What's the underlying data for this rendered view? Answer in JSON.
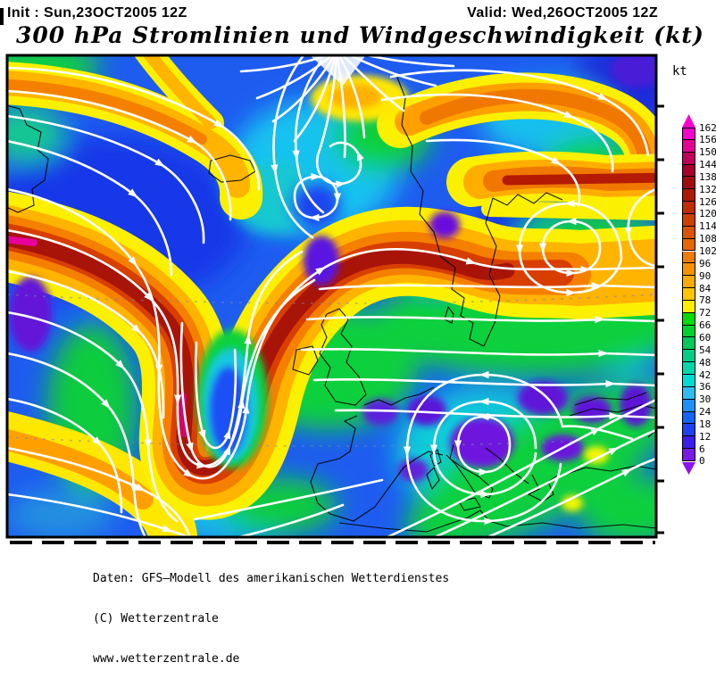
{
  "header": {
    "init": "Init : Sun,23OCT2005 12Z",
    "valid": "Valid: Wed,26OCT2005 12Z",
    "title": "300 hPa Stromlinien und Windgeschwindigkeit (kt)"
  },
  "colorbar": {
    "unit_label": "kt",
    "min": 0,
    "max": 162,
    "step": 6,
    "tick_labels": [
      "162",
      "156",
      "150",
      "144",
      "138",
      "132",
      "126",
      "120",
      "114",
      "108",
      "102",
      "96",
      "90",
      "84",
      "78",
      "72",
      "66",
      "60",
      "54",
      "48",
      "42",
      "36",
      "30",
      "24",
      "18",
      "12",
      "6",
      "0"
    ],
    "segment_colors_top_to_bottom": [
      "#FA00CE",
      "#E60096",
      "#BE005A",
      "#A6002E",
      "#A00D10",
      "#AC1A06",
      "#C02B00",
      "#CE4000",
      "#DA5400",
      "#E66600",
      "#EE7C00",
      "#F69200",
      "#FCAA00",
      "#FFC400",
      "#FFEE00",
      "#00DC00",
      "#00D22E",
      "#00C85C",
      "#00CE86",
      "#00D8AC",
      "#00DCD2",
      "#30BCF2",
      "#1E90FA",
      "#1464FA",
      "#1E42F0",
      "#3C1EEC",
      "#7A1AE6"
    ],
    "arrow_top_color": "#FA00CE",
    "arrow_bottom_color": "#8C14F0"
  },
  "footer": {
    "line1": "Daten: GFS—Modell des amerikanischen Wetterdienstes",
    "line2": "(C) Wetterzentrale",
    "line3": "www.wetterzentrale.de"
  },
  "map": {
    "field_base_color": "#1E5CF0",
    "streamline_color": "#FFFFFF",
    "coastline_color": "#000000"
  },
  "chart_data": {
    "type": "heatmap",
    "title": "300 hPa Stromlinien und Windgeschwindigkeit (kt)",
    "unit": "kt",
    "model": "GFS",
    "init_time": "Sun,23OCT2005 12Z",
    "valid_time": "Wed,26OCT2005 12Z",
    "scale_ticks": [
      0,
      6,
      12,
      18,
      24,
      30,
      36,
      42,
      48,
      54,
      60,
      66,
      72,
      78,
      84,
      90,
      96,
      102,
      108,
      114,
      120,
      126,
      132,
      138,
      144,
      150,
      156,
      162
    ],
    "legend_position": "right"
  }
}
